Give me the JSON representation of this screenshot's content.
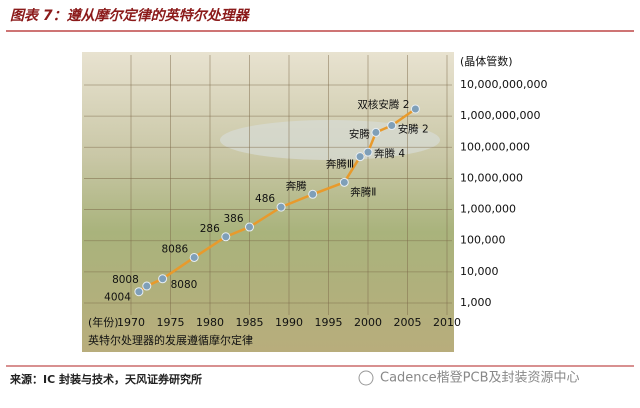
{
  "header": {
    "title": "图表 7：遵从摩尔定律的英特尔处理器"
  },
  "chart_data": {
    "type": "line",
    "caption": "英特尔处理器的发展遵循摩尔定律",
    "x_label": "(年份)",
    "y_label": "(晶体管数)",
    "categories": [
      "4004",
      "8008",
      "8080",
      "8086",
      "286",
      "386",
      "486",
      "奔腾",
      "奔腾Ⅱ",
      "奔腾Ⅲ",
      "奔腾 4",
      "安腾",
      "安腾 2",
      "双核安腾 2"
    ],
    "x": [
      1971,
      1972,
      1974,
      1978,
      1982,
      1985,
      1989,
      1993,
      1997,
      1999,
      2000,
      2001,
      2003,
      2006
    ],
    "values": [
      2300,
      3500,
      6000,
      29000,
      134000,
      275000,
      1200000,
      3100000,
      7500000,
      50000000,
      70000000,
      300000000,
      500000000,
      1700000000
    ],
    "color": "#e89a2c",
    "marker_color": "#7f9fb8",
    "xlim": [
      1970,
      2010
    ],
    "xticks": [
      1970,
      1975,
      1980,
      1985,
      1990,
      1995,
      2000,
      2005,
      2010
    ],
    "ylim": [
      1000,
      10000000000
    ],
    "log_y": true,
    "grid": true,
    "yticks": [
      {
        "value": 1000,
        "label": "1,000"
      },
      {
        "value": 10000,
        "label": "10,000"
      },
      {
        "value": 100000,
        "label": "100,000"
      },
      {
        "value": 1000000,
        "label": "1,000,000"
      },
      {
        "value": 10000000,
        "label": "10,000,000"
      },
      {
        "value": 100000000,
        "label": "100,000,000"
      },
      {
        "value": 1000000000,
        "label": "1,000,000,000"
      },
      {
        "value": 10000000000,
        "label": "10,000,000,000"
      }
    ]
  },
  "footer": {
    "source": "来源：IC 封装与技术，天风证券研究所",
    "watermark": "Cadence楷登PCB及封装资源中心"
  }
}
